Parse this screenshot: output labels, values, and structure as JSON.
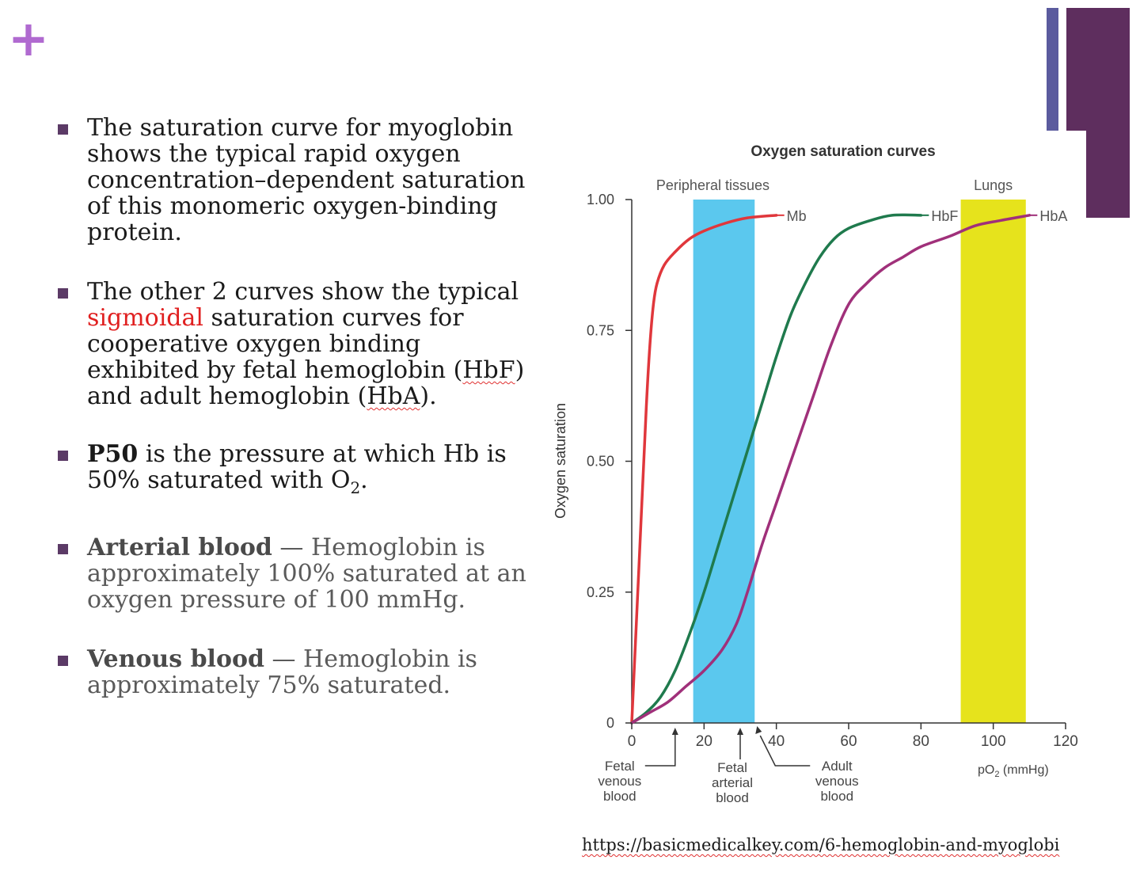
{
  "slide": {
    "plus": "+",
    "colors": {
      "accent_purple": "#5e2e5e",
      "accent_blue": "#5b5b9e",
      "plus_color": "#b06ad0",
      "bullet": "#5b3a66",
      "highlight_red": "#e02020"
    }
  },
  "bullets": [
    {
      "text": "The saturation curve for myoglobin shows the typical rapid oxygen concentration–dependent saturation of this monomeric oxygen-binding protein."
    },
    {
      "pre": "The other 2 curves show the typical ",
      "highlight": "sigmoidal",
      "mid": " saturation curves for cooperative oxygen binding exhibited by fetal hemoglobin (",
      "hbf": "HbF",
      "mid2": ") and adult hemoglobin (",
      "hba": "HbA",
      "post": ")."
    },
    {
      "bold": "P50",
      "text": " is the pressure at which Hb is 50% saturated with O",
      "sub": "2",
      "end": "."
    },
    {
      "bold": "Arterial blood",
      "text": " — Hemoglobin is approximately 100% saturated at an oxygen pressure of 100 mmHg."
    },
    {
      "bold": "Venous blood",
      "text": " — Hemoglobin is approximately 75% saturated."
    }
  ],
  "source_url": "https://basicmedicalkey.com/6-hemoglobin-and-myoglobi",
  "chart_data": {
    "type": "line",
    "title": "Oxygen saturation curves",
    "ylabel": "Oxygen saturation",
    "xlabel": "pO",
    "xlabel_sub": "2",
    "xlabel_unit": " (mmHg)",
    "xlim": [
      0,
      120
    ],
    "ylim": [
      0,
      1.0
    ],
    "x_ticks": [
      "0",
      "20",
      "40",
      "60",
      "80",
      "100",
      "120"
    ],
    "y_ticks": [
      "0",
      "0.25",
      "0.50",
      "0.75",
      "1.00"
    ],
    "bands": [
      {
        "name": "Peripheral tissues",
        "x": [
          17,
          34
        ],
        "color": "#5bc8ee"
      },
      {
        "name": "Lungs",
        "x": [
          91,
          109
        ],
        "color": "#e6e31c"
      }
    ],
    "series": [
      {
        "name": "Mb",
        "color": "#e0373c",
        "points": [
          [
            0,
            0
          ],
          [
            2,
            0.3
          ],
          [
            4,
            0.6
          ],
          [
            5,
            0.72
          ],
          [
            6,
            0.8
          ],
          [
            7,
            0.84
          ],
          [
            9,
            0.875
          ],
          [
            12,
            0.9
          ],
          [
            16,
            0.925
          ],
          [
            20,
            0.94
          ],
          [
            26,
            0.955
          ],
          [
            32,
            0.965
          ],
          [
            40,
            0.97
          ]
        ]
      },
      {
        "name": "HbF",
        "color": "#1f7a4d",
        "points": [
          [
            0,
            0
          ],
          [
            4,
            0.02
          ],
          [
            8,
            0.05
          ],
          [
            12,
            0.1
          ],
          [
            16,
            0.17
          ],
          [
            20,
            0.25
          ],
          [
            24,
            0.34
          ],
          [
            28,
            0.43
          ],
          [
            32,
            0.52
          ],
          [
            36,
            0.61
          ],
          [
            40,
            0.7
          ],
          [
            44,
            0.78
          ],
          [
            48,
            0.84
          ],
          [
            52,
            0.89
          ],
          [
            56,
            0.925
          ],
          [
            60,
            0.945
          ],
          [
            66,
            0.96
          ],
          [
            72,
            0.97
          ],
          [
            80,
            0.97
          ]
        ]
      },
      {
        "name": "HbA",
        "color": "#a0307a",
        "points": [
          [
            0,
            0
          ],
          [
            5,
            0.02
          ],
          [
            10,
            0.04
          ],
          [
            15,
            0.07
          ],
          [
            20,
            0.1
          ],
          [
            25,
            0.14
          ],
          [
            29,
            0.19
          ],
          [
            32,
            0.25
          ],
          [
            36,
            0.34
          ],
          [
            40,
            0.42
          ],
          [
            45,
            0.52
          ],
          [
            50,
            0.62
          ],
          [
            55,
            0.72
          ],
          [
            60,
            0.8
          ],
          [
            65,
            0.84
          ],
          [
            70,
            0.87
          ],
          [
            75,
            0.89
          ],
          [
            80,
            0.91
          ],
          [
            88,
            0.93
          ],
          [
            95,
            0.95
          ],
          [
            102,
            0.96
          ],
          [
            110,
            0.97
          ]
        ]
      }
    ],
    "annotations": [
      {
        "text": [
          "Fetal",
          "venous",
          "blood"
        ],
        "x": 12
      },
      {
        "text": [
          "Fetal",
          "arterial",
          "blood"
        ],
        "x": 30
      },
      {
        "text": [
          "Adult",
          "venous",
          "blood"
        ],
        "x": 34
      }
    ]
  }
}
